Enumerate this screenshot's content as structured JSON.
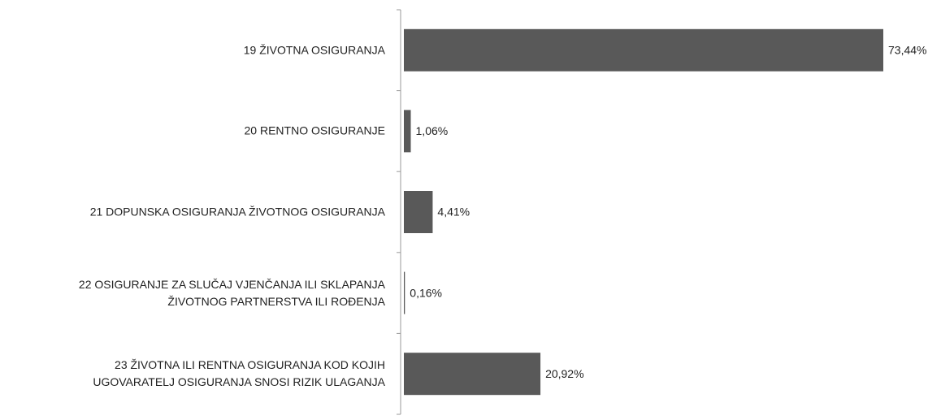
{
  "chart_data": {
    "type": "barh",
    "categories": [
      "19 ŽIVOTNA OSIGURANJA",
      "20 RENTNO OSIGURANJE",
      "21 DOPUNSKA OSIGURANJA ŽIVOTNOG OSIGURANJA",
      "22 OSIGURANJE ZA SLUČAJ VJENČANJA ILI SKLAPANJA\nŽIVOTNOG PARTNERSTVA ILI ROĐENJA",
      "23 ŽIVOTNA ILI RENTNA OSIGURANJA KOD KOJIH\nUGOVARATELJ OSIGURANJA SNOSI RIZIK ULAGANJA"
    ],
    "values": [
      73.44,
      1.06,
      4.41,
      0.16,
      20.92
    ],
    "value_labels": [
      "73,44%",
      "1,06%",
      "4,41%",
      "0,16%",
      "20,92%"
    ],
    "color": "#595959"
  }
}
